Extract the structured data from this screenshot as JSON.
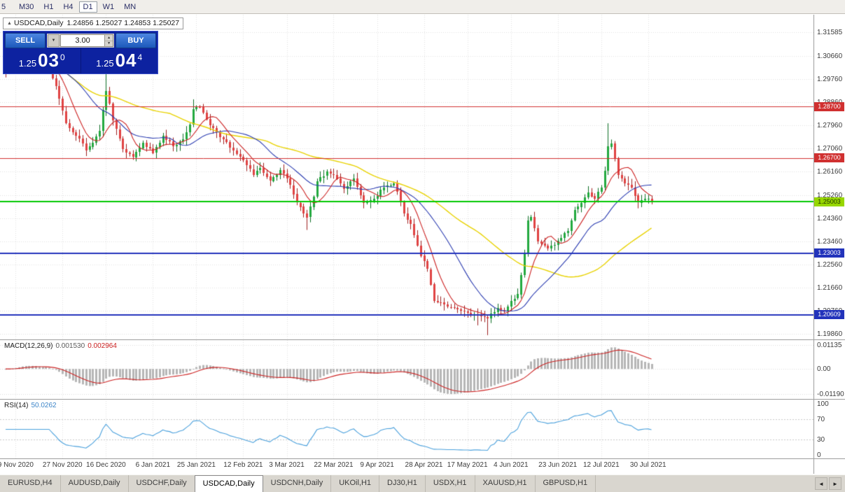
{
  "toolbar": {
    "periods": [
      "5",
      "M30",
      "H1",
      "H4",
      "D1",
      "W1",
      "MN"
    ],
    "active": "D1"
  },
  "icons": {
    "collapse": "▲",
    "dropdown": "▼",
    "spin_up": "▲",
    "spin_down": "▼",
    "tab_left": "◄",
    "tab_right": "►"
  },
  "chart_info": {
    "symbol": "USDCAD,Daily",
    "ohlc": "1.24856 1.25027 1.24853 1.25027"
  },
  "trade_panel": {
    "sell_label": "SELL",
    "buy_label": "BUY",
    "lot_value": "3.00",
    "sell_price": {
      "small": "1.25",
      "big": "03",
      "sup": "0"
    },
    "buy_price": {
      "small": "1.25",
      "big": "04",
      "sup": "4"
    }
  },
  "colors": {
    "up_fill": "#23a93f",
    "up_wick": "#0c6e24",
    "down_fill": "#e04343",
    "down_wick": "#9c1f1f",
    "ma_fast": "#cc2222",
    "ma_mid": "#2a3bb0",
    "ma_slow": "#e8d200",
    "grid": "#e0e0e0",
    "macd_hist": "#b6b6b6",
    "macd_signal": "#cc2222",
    "rsi_line": "#4aa0dc",
    "panel_navy": "#0d22a0",
    "button_blue": "#2a5fc4"
  },
  "chart_data": {
    "type": "candlestick",
    "symbol": "USDCAD",
    "timeframe": "Daily",
    "price_range": {
      "top": 1.32267,
      "bottom": 1.19644
    },
    "y_axis_labels": [
      "1.31585",
      "1.30660",
      "1.29760",
      "1.28860",
      "1.27960",
      "1.27060",
      "1.26160",
      "1.25260",
      "1.24360",
      "1.23460",
      "1.22560",
      "1.21660",
      "1.20760",
      "1.19860"
    ],
    "levels": [
      {
        "price": 1.287,
        "label": "1.28700",
        "color": "#d03030",
        "width": 1,
        "tag_bg": "#d03030",
        "tag_fg": "#ffffff"
      },
      {
        "price": 1.267,
        "label": "1.26700",
        "color": "#d03030",
        "width": 1,
        "tag_bg": "#d03030",
        "tag_fg": "#ffffff"
      },
      {
        "price": 1.25003,
        "label": "1.25003",
        "color": "#00c800",
        "width": 2,
        "tag_bg": "#97d700",
        "tag_fg": "#1d3300"
      },
      {
        "price": 1.23003,
        "label": "1.23003",
        "color": "#2233bb",
        "width": 2,
        "tag_bg": "#2233bb",
        "tag_fg": "#ffffff"
      },
      {
        "price": 1.20609,
        "label": "1.20609",
        "color": "#2233bb",
        "width": 2,
        "tag_bg": "#2233bb",
        "tag_fg": "#ffffff"
      }
    ],
    "dates": [
      {
        "i": 3,
        "t": "9 Nov 2020"
      },
      {
        "i": 17,
        "t": "27 Nov 2020"
      },
      {
        "i": 30,
        "t": "16 Dec 2020"
      },
      {
        "i": 44,
        "t": "6 Jan 2021"
      },
      {
        "i": 57,
        "t": "25 Jan 2021"
      },
      {
        "i": 71,
        "t": "12 Feb 2021"
      },
      {
        "i": 84,
        "t": "3 Mar 2021"
      },
      {
        "i": 98,
        "t": "22 Mar 2021"
      },
      {
        "i": 111,
        "t": "9 Apr 2021"
      },
      {
        "i": 125,
        "t": "28 Apr 2021"
      },
      {
        "i": 138,
        "t": "17 May 2021"
      },
      {
        "i": 151,
        "t": "4 Jun 2021"
      },
      {
        "i": 165,
        "t": "23 Jun 2021"
      },
      {
        "i": 178,
        "t": "12 Jul 2021"
      },
      {
        "i": 192,
        "t": "30 Jul 2021"
      }
    ],
    "anchors": [
      [
        0,
        1.3005
      ],
      [
        3,
        1.304
      ],
      [
        5,
        1.308
      ],
      [
        8,
        1.305
      ],
      [
        12,
        1.303
      ],
      [
        15,
        1.295
      ],
      [
        18,
        1.2805
      ],
      [
        20,
        1.277
      ],
      [
        22,
        1.2745
      ],
      [
        24,
        1.27
      ],
      [
        26,
        1.273
      ],
      [
        28,
        1.2775
      ],
      [
        30,
        1.293
      ],
      [
        31,
        1.288
      ],
      [
        32,
        1.2815
      ],
      [
        34,
        1.2745
      ],
      [
        35,
        1.2705
      ],
      [
        38,
        1.2673
      ],
      [
        41,
        1.273
      ],
      [
        44,
        1.269
      ],
      [
        47,
        1.2756
      ],
      [
        50,
        1.2715
      ],
      [
        53,
        1.2742
      ],
      [
        55,
        1.28
      ],
      [
        56,
        1.286
      ],
      [
        58,
        1.2868
      ],
      [
        60,
        1.282
      ],
      [
        61,
        1.2795
      ],
      [
        63,
        1.277
      ],
      [
        65,
        1.2742
      ],
      [
        68,
        1.27
      ],
      [
        71,
        1.266
      ],
      [
        74,
        1.2605
      ],
      [
        76,
        1.263
      ],
      [
        79,
        1.258
      ],
      [
        82,
        1.2622
      ],
      [
        84,
        1.259
      ],
      [
        86,
        1.253
      ],
      [
        87,
        1.2496
      ],
      [
        89,
        1.2455
      ],
      [
        90,
        1.244
      ],
      [
        92,
        1.252
      ],
      [
        93,
        1.258
      ],
      [
        96,
        1.2616
      ],
      [
        98,
        1.2605
      ],
      [
        101,
        1.255
      ],
      [
        104,
        1.259
      ],
      [
        107,
        1.2496
      ],
      [
        110,
        1.2512
      ],
      [
        113,
        1.2556
      ],
      [
        116,
        1.2572
      ],
      [
        118,
        1.25
      ],
      [
        119,
        1.2455
      ],
      [
        121,
        1.2414
      ],
      [
        123,
        1.233
      ],
      [
        124,
        1.229
      ],
      [
        126,
        1.2237
      ],
      [
        128,
        1.2114
      ],
      [
        131,
        1.21
      ],
      [
        134,
        1.2087
      ],
      [
        137,
        1.2073
      ],
      [
        141,
        1.206
      ],
      [
        144,
        1.2046
      ],
      [
        147,
        1.2087
      ],
      [
        149,
        1.2073
      ],
      [
        151,
        1.2114
      ],
      [
        153,
        1.214
      ],
      [
        155,
        1.23
      ],
      [
        156,
        1.2428
      ],
      [
        157,
        1.2441
      ],
      [
        159,
        1.2346
      ],
      [
        162,
        1.2319
      ],
      [
        164,
        1.2332
      ],
      [
        166,
        1.236
      ],
      [
        168,
        1.2387
      ],
      [
        170,
        1.2469
      ],
      [
        172,
        1.2496
      ],
      [
        174,
        1.2537
      ],
      [
        176,
        1.2512
      ],
      [
        178,
        1.2556
      ],
      [
        179,
        1.262
      ],
      [
        180,
        1.2714
      ],
      [
        181,
        1.2727
      ],
      [
        183,
        1.2605
      ],
      [
        185,
        1.2572
      ],
      [
        187,
        1.2556
      ],
      [
        189,
        1.2496
      ],
      [
        191,
        1.2512
      ],
      [
        193,
        1.25027
      ]
    ],
    "wick_spikes": [
      {
        "idx": 30,
        "up": 0.0045,
        "down": 0
      },
      {
        "idx": 56,
        "up": 0.003,
        "down": 0
      },
      {
        "idx": 90,
        "up": 0,
        "down": 0.004
      },
      {
        "idx": 141,
        "up": 0,
        "down": 0.0035
      },
      {
        "idx": 144,
        "up": 0,
        "down": 0.005
      },
      {
        "idx": 180,
        "up": 0.0085,
        "down": 0
      },
      {
        "idx": 186,
        "up": 0.002,
        "down": 0
      }
    ],
    "ma_periods": {
      "fast": 8,
      "mid": 21,
      "slow": 50
    },
    "macd": {
      "label": "MACD(12,26,9)",
      "value_text": "0.001530",
      "signal_text": "0.002964",
      "fast": 12,
      "slow": 26,
      "signal": 9,
      "scale_labels": [
        "0.01135",
        "0.00",
        "-0.01190"
      ],
      "range": {
        "top": 0.01135,
        "bottom": -0.0119
      }
    },
    "rsi": {
      "label": "RSI(14)",
      "value_text": "50.0262",
      "period": 14,
      "scale_labels": [
        "100",
        "70",
        "30",
        "0"
      ],
      "levels": [
        70,
        30
      ]
    }
  },
  "tabs": {
    "items": [
      "EURUSD,H4",
      "AUDUSD,Daily",
      "USDCHF,Daily",
      "USDCAD,Daily",
      "USDCNH,Daily",
      "UKOil,H1",
      "DJ30,H1",
      "USDX,H1",
      "XAUUSD,H1",
      "GBPUSD,H1"
    ],
    "active": "USDCAD,Daily"
  }
}
